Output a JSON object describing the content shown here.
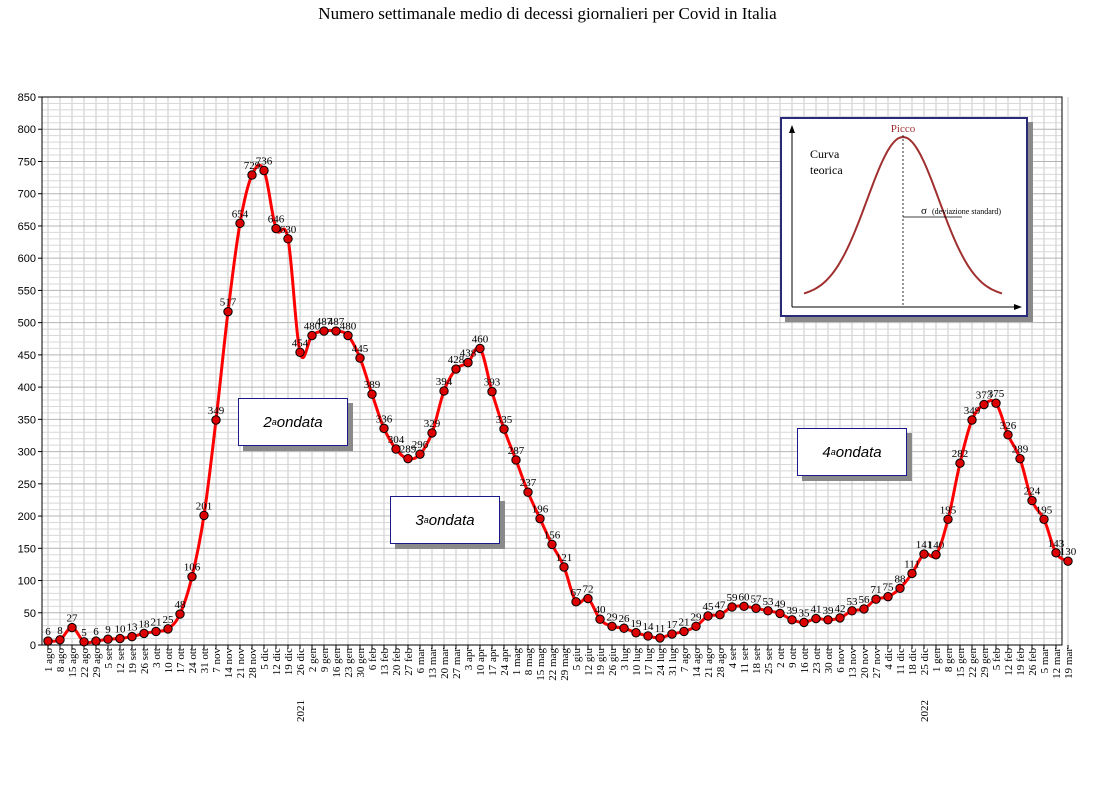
{
  "title": "Numero settimanale medio di decessi giornalieri per Covid in Italia",
  "chart_data": {
    "type": "line",
    "ylim": [
      0,
      850
    ],
    "yticks": [
      0,
      50,
      100,
      150,
      200,
      250,
      300,
      350,
      400,
      450,
      500,
      550,
      600,
      650,
      700,
      750,
      800,
      850
    ],
    "grid": true,
    "series": [
      {
        "color": "#ff0000",
        "marker_color": "#dd0000",
        "values": [
          6,
          8,
          27,
          5,
          6,
          9,
          10,
          13,
          18,
          21,
          25,
          48,
          106,
          201,
          349,
          517,
          654,
          729,
          736,
          646,
          630,
          454,
          480,
          487,
          487,
          480,
          445,
          389,
          336,
          304,
          289,
          296,
          329,
          394,
          428,
          438,
          460,
          393,
          335,
          287,
          237,
          196,
          156,
          121,
          67,
          72,
          40,
          29,
          26,
          19,
          14,
          11,
          17,
          21,
          29,
          45,
          47,
          59,
          60,
          57,
          53,
          49,
          39,
          35,
          41,
          39,
          42,
          53,
          56,
          71,
          75,
          88,
          111,
          141,
          140,
          195,
          282,
          349,
          373,
          375,
          326,
          289,
          224,
          195,
          143,
          130
        ],
        "labels": [
          "6",
          "8",
          "27",
          "5",
          "6",
          "9",
          "10",
          "13",
          "18",
          "21",
          "25",
          "48",
          "106",
          "201",
          "349",
          "517",
          "654",
          "729",
          "736",
          "646",
          "630",
          "454",
          "480",
          "487",
          "487",
          "480",
          "445",
          "389",
          "336",
          "304",
          "289",
          "296",
          "329",
          "394",
          "428",
          "438",
          "460",
          "393",
          "335",
          "287",
          "237",
          "196",
          "156",
          "121",
          "67",
          "72",
          "40",
          "29",
          "26",
          "19",
          "14",
          "11",
          "17",
          "21",
          "29",
          "45",
          "47",
          "59",
          "60",
          "57",
          "53",
          "49",
          "39",
          "35",
          "41",
          "39",
          "42",
          "53",
          "56",
          "71",
          "75",
          "88",
          "111",
          "141",
          "140",
          "195",
          "282",
          "349",
          "373",
          "375",
          "326",
          "289",
          "224",
          "195",
          "143",
          "130"
        ]
      }
    ],
    "categories": [
      "1 ago",
      "8 ago",
      "15 ago",
      "22 ago",
      "29 ago",
      "5 set",
      "12 set",
      "19 set",
      "26 set",
      "3 ott",
      "10 ott",
      "17 ott",
      "24 ott",
      "31 ott",
      "7 nov",
      "14 nov",
      "21 nov",
      "28 nov",
      "5 dic",
      "12 dic",
      "19 dic",
      "26 dic",
      "2 gen",
      "9 gen",
      "16 gen",
      "23 gen",
      "30 gen",
      "6 feb",
      "13 feb",
      "20 feb",
      "27 feb",
      "6 mar",
      "13 mar",
      "20 mar",
      "27 mar",
      "3 apr",
      "10 apr",
      "17 apr",
      "24 apr",
      "1 mag",
      "8 mag",
      "15 mag",
      "22 mag",
      "29 mag",
      "5 giu",
      "12 giu",
      "19 giu",
      "26 giu",
      "3 lug",
      "10 lug",
      "17 lug",
      "24 lug",
      "31 lug",
      "7 ago",
      "14 ago",
      "21 ago",
      "28 ago",
      "4 set",
      "11 set",
      "18 set",
      "25 set",
      "2 ott",
      "9 ott",
      "16 ott",
      "23 ott",
      "30 ott",
      "6 nov",
      "13 nov",
      "20 nov",
      "27 nov",
      "4 dic",
      "11 dic",
      "18 dic",
      "25 dic",
      "1 gen",
      "8 gen",
      "15 gen",
      "22 gen",
      "29 gen",
      "5 feb",
      "12 feb",
      "19 feb",
      "26 feb",
      "5 mar",
      "12 mar",
      "19 mar"
    ],
    "year_markers": [
      {
        "index": 22,
        "label": "2021"
      },
      {
        "index": 74,
        "label": "2022"
      }
    ],
    "annotations": [
      {
        "ordinal": "2",
        "sup": "a",
        "text": " ondata"
      },
      {
        "ordinal": "3",
        "sup": "a",
        "text": " ondata"
      },
      {
        "ordinal": "4",
        "sup": "a",
        "text": " ondata"
      }
    ],
    "inset": {
      "peak_label": "Picco",
      "curve_label_line1": "Curva",
      "curve_label_line2": "teorica",
      "sigma_symbol": "σ",
      "sigma_label": "(deviazione standard)",
      "curve_color": "#a03030"
    }
  }
}
